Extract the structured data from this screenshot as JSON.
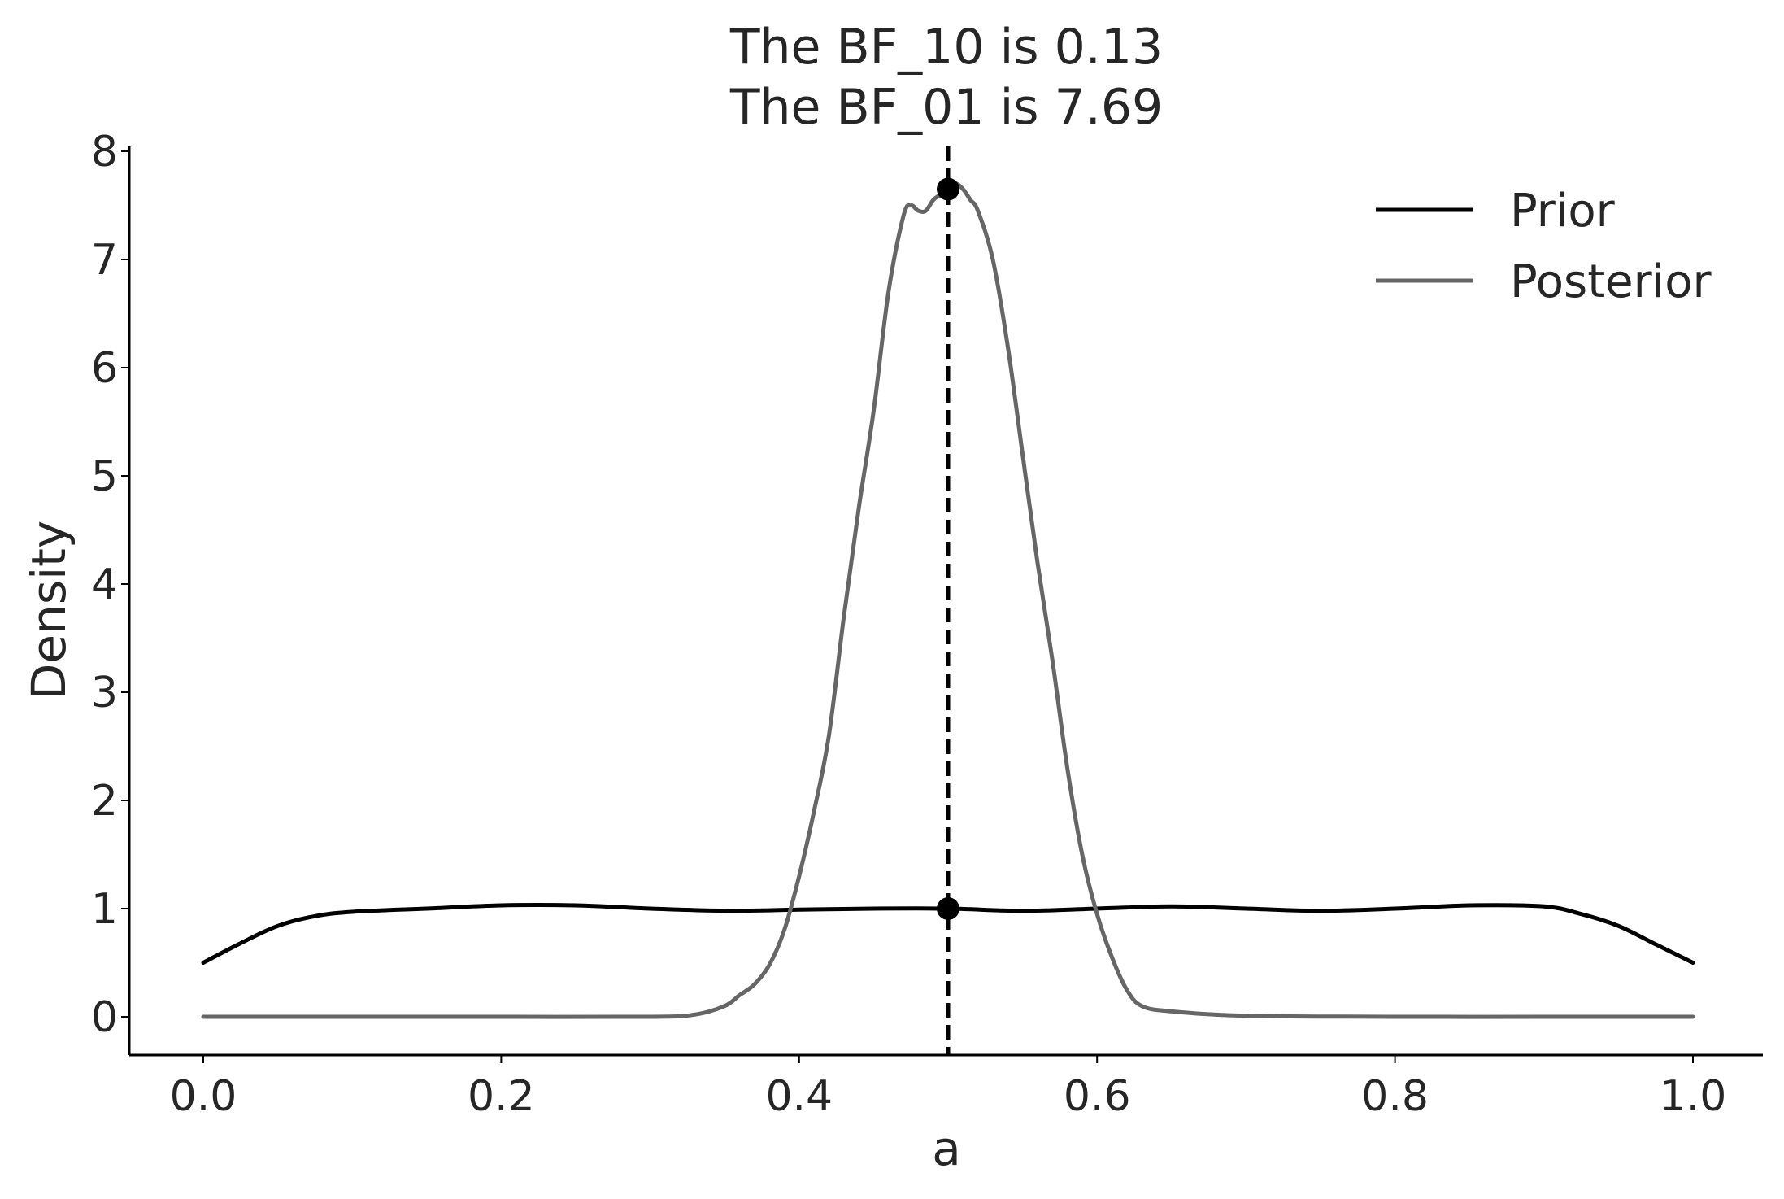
{
  "chart_data": {
    "type": "line",
    "title": [
      "The BF_10 is 0.13",
      "The BF_01 is 7.69"
    ],
    "xlabel": "a",
    "ylabel": "Density",
    "xlim": [
      -0.05,
      1.05
    ],
    "ylim": [
      -0.4,
      8.0
    ],
    "xticks": [
      0.0,
      0.2,
      0.4,
      0.6,
      0.8,
      1.0
    ],
    "xtick_labels": [
      "0.0",
      "0.2",
      "0.4",
      "0.6",
      "0.8",
      "1.0"
    ],
    "yticks": [
      0,
      1,
      2,
      3,
      4,
      5,
      6,
      7,
      8
    ],
    "ytick_labels": [
      "0",
      "1",
      "2",
      "3",
      "4",
      "5",
      "6",
      "7",
      "8"
    ],
    "grid": false,
    "legend_position": "top-right",
    "series": [
      {
        "name": "Prior",
        "color": "#000000",
        "x": [
          0.0,
          0.025,
          0.05,
          0.075,
          0.1,
          0.15,
          0.2,
          0.25,
          0.3,
          0.35,
          0.4,
          0.45,
          0.5,
          0.55,
          0.6,
          0.65,
          0.7,
          0.75,
          0.8,
          0.85,
          0.9,
          0.925,
          0.95,
          0.975,
          1.0
        ],
        "y": [
          0.5,
          0.68,
          0.84,
          0.93,
          0.97,
          1.0,
          1.03,
          1.03,
          1.0,
          0.98,
          0.99,
          1.0,
          1.0,
          0.98,
          1.0,
          1.02,
          1.0,
          0.98,
          1.0,
          1.03,
          1.02,
          0.95,
          0.84,
          0.67,
          0.5
        ]
      },
      {
        "name": "Posterior",
        "color": "#666666",
        "x": [
          0.0,
          0.1,
          0.2,
          0.3,
          0.33,
          0.35,
          0.36,
          0.37,
          0.38,
          0.39,
          0.4,
          0.41,
          0.42,
          0.43,
          0.44,
          0.45,
          0.46,
          0.47,
          0.475,
          0.48,
          0.485,
          0.49,
          0.495,
          0.5,
          0.505,
          0.51,
          0.515,
          0.52,
          0.53,
          0.54,
          0.55,
          0.56,
          0.57,
          0.58,
          0.59,
          0.6,
          0.61,
          0.62,
          0.63,
          0.65,
          0.7,
          0.8,
          0.9,
          1.0
        ],
        "y": [
          0.0,
          0.0,
          0.0,
          0.0,
          0.02,
          0.1,
          0.2,
          0.3,
          0.48,
          0.8,
          1.3,
          1.9,
          2.6,
          3.7,
          4.7,
          5.6,
          6.7,
          7.4,
          7.5,
          7.45,
          7.45,
          7.55,
          7.6,
          7.65,
          7.7,
          7.65,
          7.55,
          7.45,
          7.0,
          6.2,
          5.2,
          4.2,
          3.3,
          2.3,
          1.5,
          0.95,
          0.55,
          0.25,
          0.1,
          0.05,
          0.01,
          0.0,
          0.0,
          0.0
        ]
      }
    ],
    "reference_line": {
      "x": 0.5,
      "style": "dashed",
      "color": "#000000"
    },
    "points": [
      {
        "label": "posterior-at-0.5",
        "x": 0.5,
        "y": 7.65
      },
      {
        "label": "prior-at-0.5",
        "x": 0.5,
        "y": 1.0
      }
    ]
  }
}
